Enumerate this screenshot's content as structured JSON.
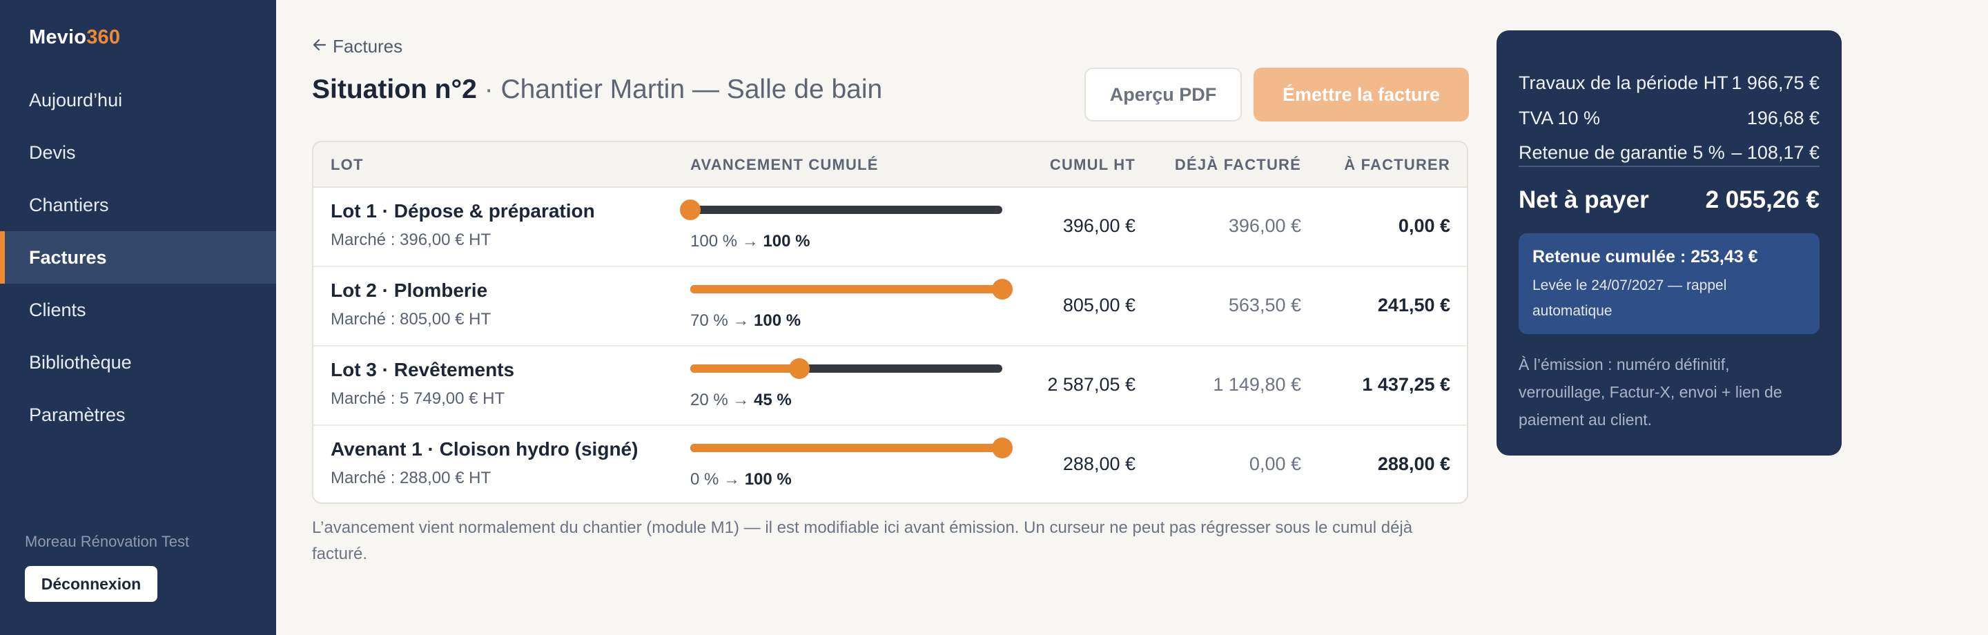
{
  "app": {
    "name_part1": "Mevio",
    "name_part2": "360"
  },
  "sidebar": {
    "items": [
      {
        "label": "Aujourd’hui",
        "active": false
      },
      {
        "label": "Devis",
        "active": false
      },
      {
        "label": "Chantiers",
        "active": false
      },
      {
        "label": "Factures",
        "active": true
      },
      {
        "label": "Clients",
        "active": false
      },
      {
        "label": "Bibliothèque",
        "active": false
      },
      {
        "label": "Paramètres",
        "active": false
      }
    ],
    "company": "Moreau Rénovation Test",
    "logout_label": "Déconnexion"
  },
  "header": {
    "back_label": "Factures",
    "title_strong": "Situation n°2",
    "title_sep": " · ",
    "title_light": "Chantier Martin — Salle de bain",
    "preview_label": "Aperçu PDF",
    "emit_label": "Émettre la facture"
  },
  "table": {
    "headers": {
      "lot": "LOT",
      "avancement": "AVANCEMENT CUMULÉ",
      "cumul": "CUMUL HT",
      "deja": "DÉJÀ FACTURÉ",
      "afacturer": "À FACTURER"
    },
    "rows": [
      {
        "name": "Lot 1 · Dépose & préparation",
        "market": "Marché : 396,00 € HT",
        "from": "100 %",
        "to": "100 %",
        "slider_value": 0.0,
        "cumul": "396,00 €",
        "deja": "396,00 €",
        "afacturer": "0,00 €"
      },
      {
        "name": "Lot 2 · Plomberie",
        "market": "Marché : 805,00 € HT",
        "from": "70 %",
        "to": "100 %",
        "slider_value": 1.0,
        "cumul": "805,00 €",
        "deja": "563,50 €",
        "afacturer": "241,50 €"
      },
      {
        "name": "Lot 3 · Revêtements",
        "market": "Marché : 5 749,00 € HT",
        "from": "20 %",
        "to": "45 %",
        "slider_value": 0.35,
        "cumul": "2 587,05 €",
        "deja": "1 149,80 €",
        "afacturer": "1 437,25 €"
      },
      {
        "name": "Avenant 1 · Cloison hydro (signé)",
        "market": "Marché : 288,00 € HT",
        "from": "0 %",
        "to": "100 %",
        "slider_value": 1.0,
        "cumul": "288,00 €",
        "deja": "0,00 €",
        "afacturer": "288,00 €"
      }
    ]
  },
  "footnote": "L’avancement vient normalement du chantier (module M1) — il est modifiable ici avant émission. Un curseur ne peut pas régresser sous le cumul déjà facturé.",
  "summary": {
    "lines": [
      {
        "label": "Travaux de la période HT",
        "value": "1 966,75 €"
      },
      {
        "label": "TVA 10 %",
        "value": "196,68 €"
      },
      {
        "label": "Retenue de garantie 5 %",
        "value": "– 108,17 €"
      }
    ],
    "net_label": "Net à payer",
    "net_value": "2 055,26 €",
    "retenue_title": "Retenue cumulée : 253,43 €",
    "retenue_sub": "Levée le 24/07/2027 — rappel automatique",
    "emission_note": "À l’émission : numéro définitif, verrouillage, Factur-X, envoi + lien de paiement au client."
  },
  "colors": {
    "sidebar_bg": "#223456",
    "accent": "#ee8a33",
    "emit_button": "#f2b98a",
    "slider_track": "#34383f",
    "slider_fill": "#e9872f"
  }
}
